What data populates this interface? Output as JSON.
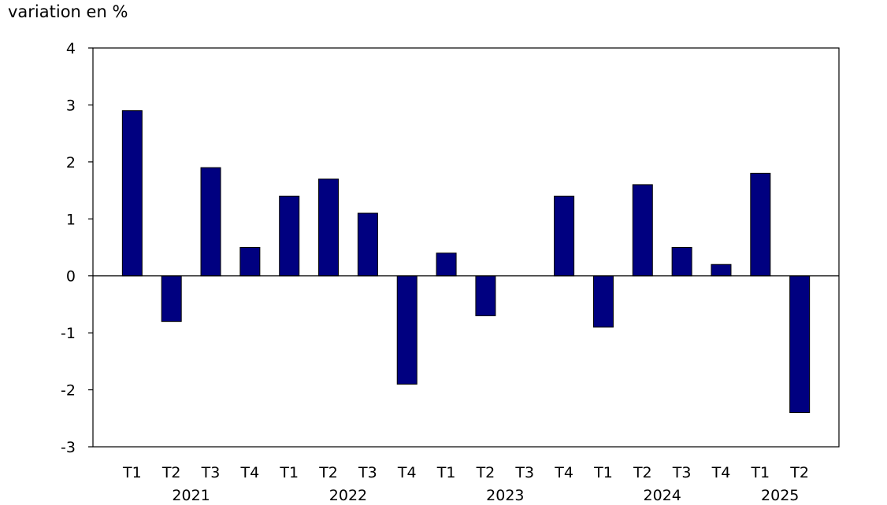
{
  "colors": {
    "bar": "#000080",
    "bar_stroke": "#000000",
    "axis": "#000000",
    "background": "#ffffff"
  },
  "chart_data": {
    "type": "bar",
    "title": "",
    "ylabel": "variation en %",
    "xlabel": "",
    "ylim": [
      -3,
      4
    ],
    "yticks": [
      4,
      3,
      2,
      1,
      0,
      -1,
      -2,
      -3
    ],
    "grid": false,
    "categories": [
      "T1",
      "T2",
      "T3",
      "T4",
      "T1",
      "T2",
      "T3",
      "T4",
      "T1",
      "T2",
      "T3",
      "T4",
      "T1",
      "T2",
      "T3",
      "T4",
      "T1",
      "T2"
    ],
    "year_groups": [
      {
        "label": "2021",
        "start": 0,
        "end": 3
      },
      {
        "label": "2022",
        "start": 4,
        "end": 7
      },
      {
        "label": "2023",
        "start": 8,
        "end": 11
      },
      {
        "label": "2024",
        "start": 12,
        "end": 15
      },
      {
        "label": "2025",
        "start": 16,
        "end": 17
      }
    ],
    "series": [
      {
        "name": "variation en %",
        "values": [
          2.9,
          -0.8,
          1.9,
          0.5,
          1.4,
          1.7,
          1.1,
          -1.9,
          0.4,
          -0.7,
          0.0,
          1.4,
          -0.9,
          1.6,
          0.5,
          0.2,
          1.8,
          -2.4
        ]
      }
    ]
  }
}
